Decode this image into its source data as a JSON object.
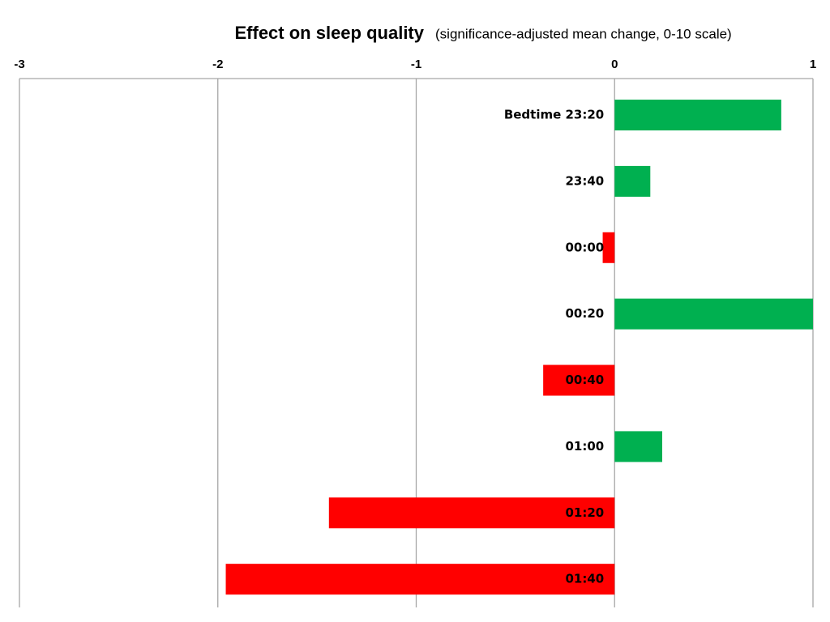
{
  "chart_data": {
    "type": "bar",
    "orientation": "horizontal",
    "title": "Effect on sleep quality",
    "subtitle": "(significance-adjusted mean change, 0-10 scale)",
    "categories": [
      "Bedtime 23:20",
      "23:40",
      "00:00",
      "00:20",
      "00:40",
      "01:00",
      "01:20",
      "01:40"
    ],
    "values": [
      0.84,
      0.18,
      -0.06,
      1.0,
      -0.36,
      0.24,
      -1.44,
      -1.96
    ],
    "colors": [
      "#00b050",
      "#00b050",
      "#ff0000",
      "#00b050",
      "#ff0000",
      "#00b050",
      "#ff0000",
      "#ff0000"
    ],
    "xlim": [
      -3,
      1
    ],
    "xticks": [
      -3,
      -2,
      -1,
      0,
      1
    ],
    "grid": true
  }
}
